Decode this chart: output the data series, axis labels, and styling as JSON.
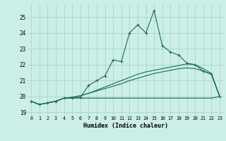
{
  "xlabel": "Humidex (Indice chaleur)",
  "bg_color": "#cceee8",
  "grid_color": "#aad4cc",
  "line_color": "#1a6b5a",
  "xlim": [
    -0.5,
    23.5
  ],
  "ylim": [
    18.8,
    25.8
  ],
  "yticks": [
    19,
    20,
    21,
    22,
    23,
    24,
    25
  ],
  "xticks": [
    0,
    1,
    2,
    3,
    4,
    5,
    6,
    7,
    8,
    9,
    10,
    11,
    12,
    13,
    14,
    15,
    16,
    17,
    18,
    19,
    20,
    21,
    22,
    23
  ],
  "series1_x": [
    0,
    1,
    2,
    3,
    4,
    5,
    6,
    7,
    8,
    9,
    10,
    11,
    12,
    13,
    14,
    15,
    16,
    17,
    18,
    19,
    20,
    21,
    22,
    23
  ],
  "series1_y": [
    19.7,
    19.5,
    19.6,
    19.7,
    19.9,
    19.9,
    19.95,
    20.7,
    21.0,
    21.3,
    22.3,
    22.2,
    24.0,
    24.5,
    24.0,
    25.4,
    23.2,
    22.8,
    22.6,
    22.1,
    22.0,
    21.6,
    21.4,
    20.0
  ],
  "series2_x": [
    0,
    1,
    2,
    3,
    4,
    5,
    6,
    7,
    8,
    9,
    10,
    11,
    12,
    13,
    14,
    15,
    16,
    17,
    18,
    19,
    20,
    21,
    22,
    23
  ],
  "series2_y": [
    19.7,
    19.5,
    19.6,
    19.7,
    19.9,
    19.9,
    19.9,
    19.9,
    19.9,
    19.9,
    19.9,
    19.9,
    19.9,
    19.9,
    19.9,
    19.9,
    19.9,
    19.9,
    19.9,
    19.9,
    19.9,
    19.9,
    19.9,
    20.0
  ],
  "series3_x": [
    0,
    1,
    2,
    3,
    4,
    5,
    6,
    7,
    8,
    9,
    10,
    11,
    12,
    13,
    14,
    15,
    16,
    17,
    18,
    19,
    20,
    21,
    22,
    23
  ],
  "series3_y": [
    19.7,
    19.5,
    19.6,
    19.7,
    19.9,
    19.95,
    20.05,
    20.2,
    20.35,
    20.5,
    20.65,
    20.8,
    21.0,
    21.15,
    21.3,
    21.45,
    21.55,
    21.65,
    21.75,
    21.8,
    21.75,
    21.6,
    21.4,
    20.0
  ],
  "series4_x": [
    0,
    1,
    2,
    3,
    4,
    5,
    6,
    7,
    8,
    9,
    10,
    11,
    12,
    13,
    14,
    15,
    16,
    17,
    18,
    19,
    20,
    21,
    22,
    23
  ],
  "series4_y": [
    19.7,
    19.5,
    19.6,
    19.7,
    19.9,
    19.95,
    20.05,
    20.2,
    20.4,
    20.6,
    20.8,
    21.0,
    21.2,
    21.4,
    21.55,
    21.65,
    21.75,
    21.85,
    21.95,
    22.05,
    22.0,
    21.75,
    21.45,
    20.0
  ]
}
